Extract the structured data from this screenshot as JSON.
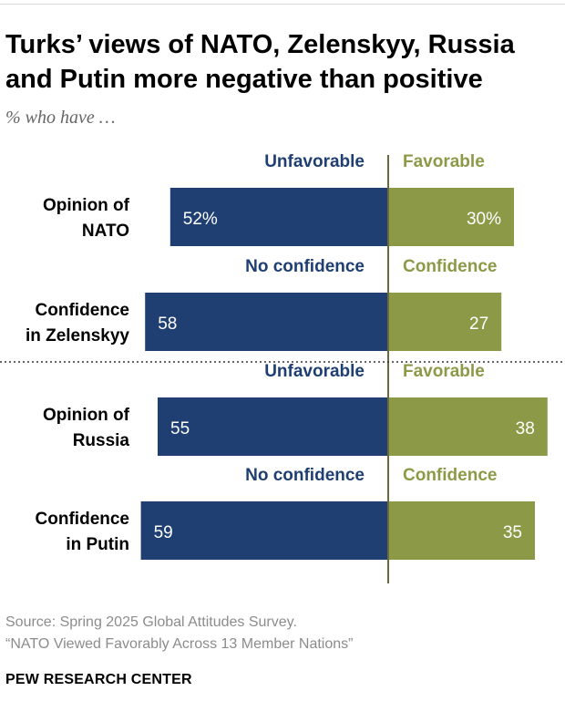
{
  "title": "Turks’ views of NATO, Zelenskyy, Russia and Putin more negative than positive",
  "subtitle": "% who have …",
  "colors": {
    "negative": "#1f3f73",
    "positive": "#8c9a48",
    "negative_text": "#1f3f73",
    "positive_text": "#8c9a48",
    "divider": "#6b6b3a"
  },
  "chart_data": {
    "type": "bar",
    "orientation": "diverging-horizontal",
    "title": "Turks’ views of NATO, Zelenskyy, Russia and Putin more negative than positive",
    "categories": [
      "Opinion of NATO",
      "Confidence in Zelenskyy",
      "Opinion of Russia",
      "Confidence in Putin"
    ],
    "rows": [
      {
        "label_lines": [
          "Opinion of",
          "NATO"
        ],
        "negative_label": "Unfavorable",
        "positive_label": "Favorable",
        "negative": 52,
        "positive": 30,
        "negative_text": "52%",
        "positive_text": "30%"
      },
      {
        "label_lines": [
          "Confidence",
          "in Zelenskyy"
        ],
        "negative_label": "No confidence",
        "positive_label": "Confidence",
        "negative": 58,
        "positive": 27,
        "negative_text": "58",
        "positive_text": "27"
      },
      {
        "label_lines": [
          "Opinion of",
          "Russia"
        ],
        "negative_label": "Unfavorable",
        "positive_label": "Favorable",
        "negative": 55,
        "positive": 38,
        "negative_text": "55",
        "positive_text": "38"
      },
      {
        "label_lines": [
          "Confidence",
          "in Putin"
        ],
        "negative_label": "No confidence",
        "positive_label": "Confidence",
        "negative": 59,
        "positive": 35,
        "negative_text": "59",
        "positive_text": "35"
      }
    ],
    "series": [
      {
        "name": "Unfavorable / No confidence",
        "values": [
          52,
          58,
          55,
          59
        ]
      },
      {
        "name": "Favorable / Confidence",
        "values": [
          30,
          27,
          38,
          35
        ]
      }
    ]
  },
  "footer": {
    "source": "Source: Spring 2025 Global Attitudes Survey.",
    "report": "“NATO Viewed Favorably Across 13 Member Nations”",
    "brand": "PEW RESEARCH CENTER"
  }
}
